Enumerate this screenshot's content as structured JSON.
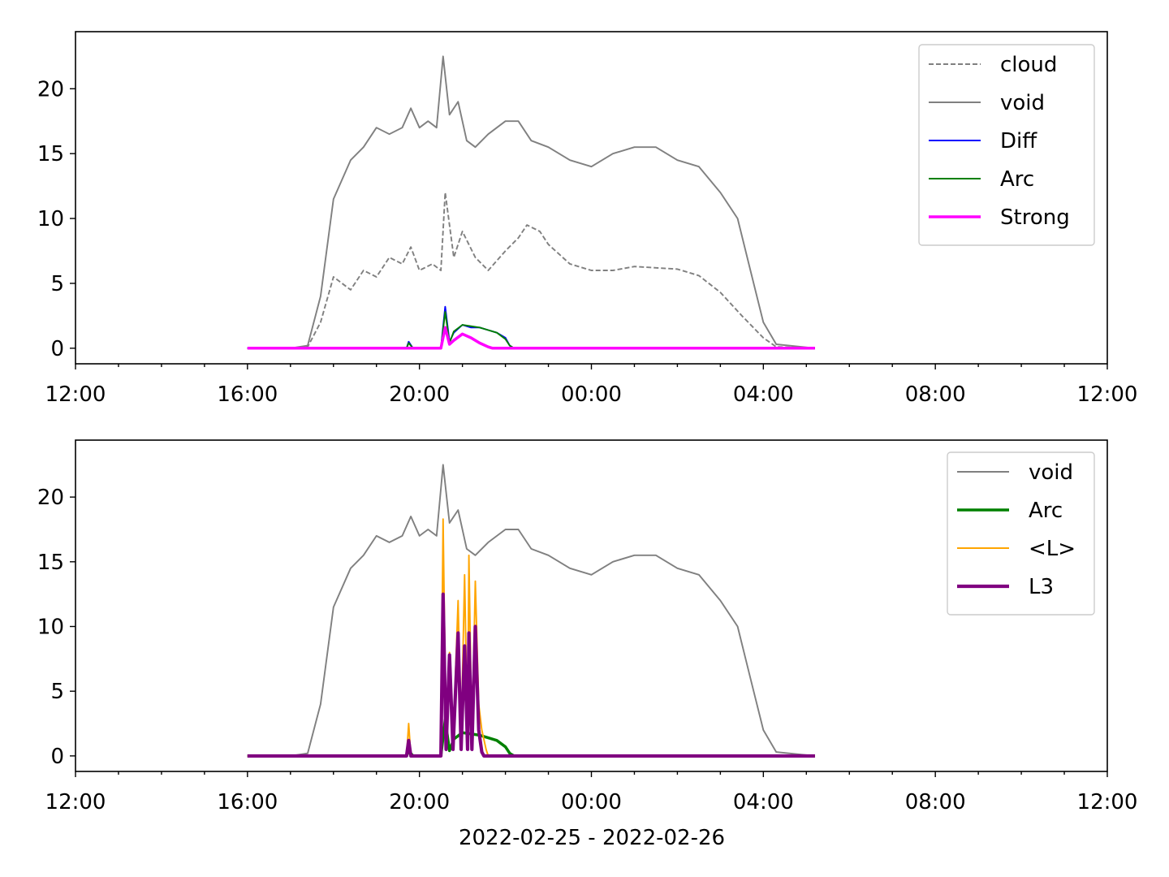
{
  "xlabel": "2022-02-25 - 2022-02-26",
  "chart_data": [
    {
      "type": "line",
      "x_ticks": [
        "12:00",
        "16:00",
        "20:00",
        "00:00",
        "04:00",
        "08:00",
        "12:00"
      ],
      "x_range": [
        "2022-02-25 12:00",
        "2022-02-26 12:00"
      ],
      "y_ticks": [
        0,
        5,
        10,
        15,
        20
      ],
      "ylim": [
        -1.2,
        24.4
      ],
      "legend": "top-right",
      "series": [
        {
          "name": "cloud",
          "color": "#808080",
          "style": "dashed",
          "width": 1.2,
          "points": [
            [
              16.0,
              0
            ],
            [
              17.0,
              0
            ],
            [
              17.4,
              0.1
            ],
            [
              17.7,
              2
            ],
            [
              18.0,
              5.5
            ],
            [
              18.4,
              4.5
            ],
            [
              18.7,
              6
            ],
            [
              19.0,
              5.5
            ],
            [
              19.3,
              7
            ],
            [
              19.6,
              6.5
            ],
            [
              19.8,
              7.8
            ],
            [
              20.0,
              6
            ],
            [
              20.3,
              6.5
            ],
            [
              20.5,
              6
            ],
            [
              20.6,
              12
            ],
            [
              20.8,
              7
            ],
            [
              21.0,
              9
            ],
            [
              21.3,
              7
            ],
            [
              21.6,
              6
            ],
            [
              22.0,
              7.5
            ],
            [
              22.3,
              8.5
            ],
            [
              22.5,
              9.5
            ],
            [
              22.8,
              9
            ],
            [
              23.0,
              8
            ],
            [
              23.5,
              6.5
            ],
            [
              24.0,
              6
            ],
            [
              24.5,
              6
            ],
            [
              25.0,
              6.3
            ],
            [
              25.5,
              6.2
            ],
            [
              26.0,
              6.1
            ],
            [
              26.5,
              5.6
            ],
            [
              27.0,
              4.3
            ],
            [
              27.5,
              2.5
            ],
            [
              28.0,
              0.8
            ],
            [
              28.3,
              0.1
            ],
            [
              29.2,
              0
            ]
          ]
        },
        {
          "name": "void",
          "color": "#808080",
          "style": "solid",
          "width": 1.2,
          "points": [
            [
              16.0,
              0
            ],
            [
              17.0,
              0
            ],
            [
              17.4,
              0.2
            ],
            [
              17.7,
              4
            ],
            [
              18.0,
              11.5
            ],
            [
              18.4,
              14.5
            ],
            [
              18.7,
              15.5
            ],
            [
              19.0,
              17
            ],
            [
              19.3,
              16.5
            ],
            [
              19.6,
              17
            ],
            [
              19.8,
              18.5
            ],
            [
              20.0,
              17
            ],
            [
              20.2,
              17.5
            ],
            [
              20.4,
              17
            ],
            [
              20.55,
              22.5
            ],
            [
              20.7,
              18
            ],
            [
              20.9,
              19
            ],
            [
              21.1,
              16
            ],
            [
              21.3,
              15.5
            ],
            [
              21.6,
              16.5
            ],
            [
              22.0,
              17.5
            ],
            [
              22.3,
              17.5
            ],
            [
              22.6,
              16
            ],
            [
              23.0,
              15.5
            ],
            [
              23.5,
              14.5
            ],
            [
              24.0,
              14
            ],
            [
              24.5,
              15
            ],
            [
              25.0,
              15.5
            ],
            [
              25.5,
              15.5
            ],
            [
              26.0,
              14.5
            ],
            [
              26.5,
              14
            ],
            [
              27.0,
              12
            ],
            [
              27.4,
              10
            ],
            [
              27.7,
              6
            ],
            [
              28.0,
              2
            ],
            [
              28.3,
              0.3
            ],
            [
              29.2,
              0
            ]
          ]
        },
        {
          "name": "Diff",
          "color": "#0000ff",
          "style": "solid",
          "width": 1.2,
          "points": [
            [
              16.0,
              0
            ],
            [
              19.7,
              0
            ],
            [
              19.75,
              0.5
            ],
            [
              19.85,
              0
            ],
            [
              20.5,
              0
            ],
            [
              20.6,
              3.2
            ],
            [
              20.7,
              0.5
            ],
            [
              20.8,
              1.2
            ],
            [
              21.0,
              1.8
            ],
            [
              21.2,
              1.6
            ],
            [
              21.4,
              1.6
            ],
            [
              21.6,
              1.4
            ],
            [
              21.8,
              1.2
            ],
            [
              22.0,
              0.8
            ],
            [
              22.1,
              0.2
            ],
            [
              22.2,
              0
            ],
            [
              29.2,
              0
            ]
          ]
        },
        {
          "name": "Arc",
          "color": "#008000",
          "style": "solid",
          "width": 1.2,
          "points": [
            [
              16.0,
              0
            ],
            [
              19.7,
              0
            ],
            [
              19.75,
              0.4
            ],
            [
              19.85,
              0
            ],
            [
              20.5,
              0
            ],
            [
              20.6,
              2.8
            ],
            [
              20.7,
              0.4
            ],
            [
              20.8,
              1.3
            ],
            [
              21.0,
              1.8
            ],
            [
              21.2,
              1.7
            ],
            [
              21.4,
              1.6
            ],
            [
              21.6,
              1.4
            ],
            [
              21.8,
              1.2
            ],
            [
              22.0,
              0.7
            ],
            [
              22.1,
              0.2
            ],
            [
              22.2,
              0
            ],
            [
              29.2,
              0
            ]
          ]
        },
        {
          "name": "Strong",
          "color": "#ff00ff",
          "style": "solid",
          "width": 2.2,
          "points": [
            [
              16.0,
              0
            ],
            [
              20.5,
              0
            ],
            [
              20.6,
              1.6
            ],
            [
              20.7,
              0.3
            ],
            [
              20.8,
              0.6
            ],
            [
              21.0,
              1.1
            ],
            [
              21.2,
              0.8
            ],
            [
              21.4,
              0.4
            ],
            [
              21.6,
              0.1
            ],
            [
              21.7,
              0
            ],
            [
              29.2,
              0
            ]
          ]
        }
      ]
    },
    {
      "type": "line",
      "x_ticks": [
        "12:00",
        "16:00",
        "20:00",
        "00:00",
        "04:00",
        "08:00",
        "12:00"
      ],
      "x_range": [
        "2022-02-25 12:00",
        "2022-02-26 12:00"
      ],
      "y_ticks": [
        0,
        5,
        10,
        15,
        20
      ],
      "ylim": [
        -1.2,
        24.4
      ],
      "legend": "top-right",
      "series": [
        {
          "name": "void",
          "color": "#808080",
          "style": "solid",
          "width": 1.2,
          "points": [
            [
              16.0,
              0
            ],
            [
              17.0,
              0
            ],
            [
              17.4,
              0.2
            ],
            [
              17.7,
              4
            ],
            [
              18.0,
              11.5
            ],
            [
              18.4,
              14.5
            ],
            [
              18.7,
              15.5
            ],
            [
              19.0,
              17
            ],
            [
              19.3,
              16.5
            ],
            [
              19.6,
              17
            ],
            [
              19.8,
              18.5
            ],
            [
              20.0,
              17
            ],
            [
              20.2,
              17.5
            ],
            [
              20.4,
              17
            ],
            [
              20.55,
              22.5
            ],
            [
              20.7,
              18
            ],
            [
              20.9,
              19
            ],
            [
              21.1,
              16
            ],
            [
              21.3,
              15.5
            ],
            [
              21.6,
              16.5
            ],
            [
              22.0,
              17.5
            ],
            [
              22.3,
              17.5
            ],
            [
              22.6,
              16
            ],
            [
              23.0,
              15.5
            ],
            [
              23.5,
              14.5
            ],
            [
              24.0,
              14
            ],
            [
              24.5,
              15
            ],
            [
              25.0,
              15.5
            ],
            [
              25.5,
              15.5
            ],
            [
              26.0,
              14.5
            ],
            [
              26.5,
              14
            ],
            [
              27.0,
              12
            ],
            [
              27.4,
              10
            ],
            [
              27.7,
              6
            ],
            [
              28.0,
              2
            ],
            [
              28.3,
              0.3
            ],
            [
              29.2,
              0
            ]
          ]
        },
        {
          "name": "Arc",
          "color": "#008000",
          "style": "solid",
          "width": 2.2,
          "points": [
            [
              16.0,
              0
            ],
            [
              19.7,
              0
            ],
            [
              19.75,
              0.4
            ],
            [
              19.85,
              0
            ],
            [
              20.5,
              0
            ],
            [
              20.6,
              2.8
            ],
            [
              20.7,
              0.4
            ],
            [
              20.8,
              1.3
            ],
            [
              21.0,
              1.8
            ],
            [
              21.2,
              1.7
            ],
            [
              21.4,
              1.6
            ],
            [
              21.6,
              1.4
            ],
            [
              21.8,
              1.2
            ],
            [
              22.0,
              0.7
            ],
            [
              22.1,
              0.2
            ],
            [
              22.2,
              0
            ],
            [
              29.2,
              0
            ]
          ]
        },
        {
          "name": "<L>",
          "color": "#ffa500",
          "style": "solid",
          "width": 1.2,
          "points": [
            [
              16.0,
              0
            ],
            [
              19.7,
              0
            ],
            [
              19.75,
              2.5
            ],
            [
              19.8,
              0
            ],
            [
              20.5,
              0
            ],
            [
              20.55,
              18.3
            ],
            [
              20.62,
              1
            ],
            [
              20.7,
              8
            ],
            [
              20.78,
              1
            ],
            [
              20.9,
              12
            ],
            [
              20.97,
              1
            ],
            [
              21.05,
              14
            ],
            [
              21.12,
              1
            ],
            [
              21.15,
              15.5
            ],
            [
              21.22,
              1
            ],
            [
              21.3,
              13.5
            ],
            [
              21.38,
              4
            ],
            [
              21.45,
              2
            ],
            [
              21.55,
              0.5
            ],
            [
              21.6,
              0
            ],
            [
              29.2,
              0
            ]
          ]
        },
        {
          "name": "L3",
          "color": "#800080",
          "style": "solid",
          "width": 2.6,
          "points": [
            [
              16.0,
              0
            ],
            [
              19.7,
              0
            ],
            [
              19.75,
              1.2
            ],
            [
              19.8,
              0
            ],
            [
              20.5,
              0
            ],
            [
              20.55,
              12.5
            ],
            [
              20.62,
              0.5
            ],
            [
              20.7,
              7.8
            ],
            [
              20.78,
              0.5
            ],
            [
              20.9,
              9.5
            ],
            [
              20.97,
              0.5
            ],
            [
              21.05,
              8.5
            ],
            [
              21.12,
              0.5
            ],
            [
              21.15,
              9.5
            ],
            [
              21.22,
              0.5
            ],
            [
              21.3,
              10
            ],
            [
              21.38,
              2
            ],
            [
              21.45,
              0.3
            ],
            [
              21.5,
              0
            ],
            [
              29.2,
              0
            ]
          ]
        }
      ]
    }
  ]
}
